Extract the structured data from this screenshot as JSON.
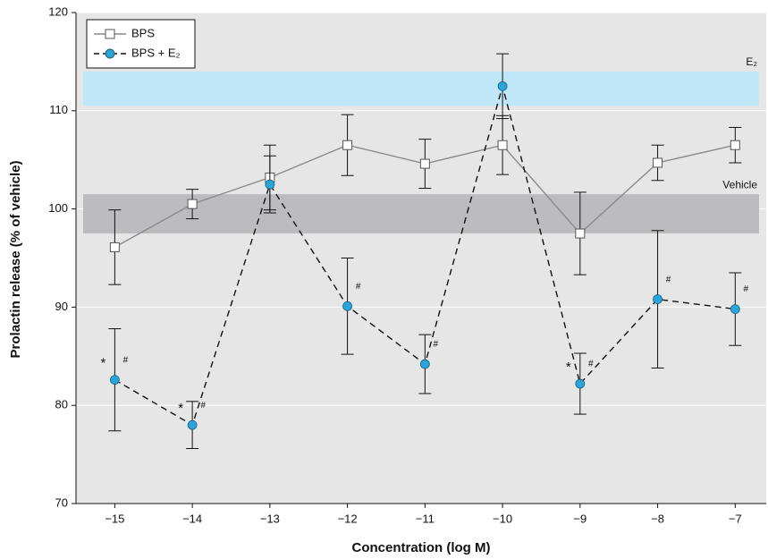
{
  "chart_data": {
    "type": "line",
    "x_label": "Concentration (log M)",
    "y_label": "Prolactin release (% of vehicle)",
    "xlim": [
      -15.5,
      -6.6
    ],
    "ylim": [
      70,
      120
    ],
    "xticks": [
      {
        "value": -15,
        "label": "−15"
      },
      {
        "value": -14,
        "label": "−14"
      },
      {
        "value": -13,
        "label": "−13"
      },
      {
        "value": -12,
        "label": "−12"
      },
      {
        "value": -11,
        "label": "−11"
      },
      {
        "value": -10,
        "label": "−10"
      },
      {
        "value": -9,
        "label": "−9"
      },
      {
        "value": -8,
        "label": "−8"
      },
      {
        "value": -7,
        "label": "−7"
      }
    ],
    "yticks": [
      70,
      80,
      90,
      100,
      110,
      120
    ],
    "grid": true,
    "legend": "top-left",
    "bands": [
      {
        "label": "E₂",
        "range": [
          110.5,
          114
        ],
        "color": "#bfe7f8"
      },
      {
        "label": "Vehicle",
        "range": [
          97.5,
          101.5
        ],
        "color": "#bcbcbe"
      }
    ],
    "x": [
      -15,
      -14,
      -13,
      -12,
      -11,
      -10,
      -9,
      -8,
      -7
    ],
    "series": [
      {
        "name": "BPS",
        "color": "#8a8a8a",
        "marker": "square",
        "values": [
          96.1,
          100.5,
          103.2,
          106.5,
          104.6,
          106.5,
          97.5,
          104.7,
          106.5
        ],
        "errors": [
          3.8,
          1.5,
          3.3,
          3.1,
          2.5,
          3.0,
          4.2,
          1.8,
          1.8
        ]
      },
      {
        "name": "BPS + E₂",
        "color": "#111111",
        "marker_color": "#2aa4d9",
        "marker": "circle",
        "dashed": true,
        "values": [
          82.6,
          78.0,
          102.5,
          90.1,
          84.2,
          112.5,
          82.2,
          90.8,
          89.8
        ],
        "errors": [
          5.2,
          2.4,
          2.9,
          4.9,
          3.0,
          3.3,
          3.1,
          7.0,
          3.7
        ]
      }
    ],
    "annotations": [
      {
        "x": -15,
        "text": "*"
      },
      {
        "x": -15,
        "text": "#"
      },
      {
        "x": -14,
        "text": "*"
      },
      {
        "x": -14,
        "text": "#"
      },
      {
        "x": -12,
        "text": "#"
      },
      {
        "x": -11,
        "text": "#"
      },
      {
        "x": -9,
        "text": "*"
      },
      {
        "x": -9,
        "text": "#"
      },
      {
        "x": -8,
        "text": "#"
      },
      {
        "x": -7,
        "text": "#"
      }
    ]
  }
}
